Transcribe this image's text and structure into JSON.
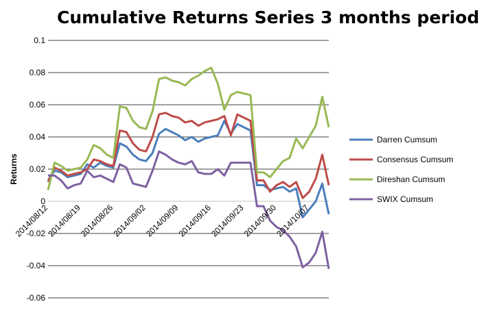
{
  "chart_data": {
    "type": "line",
    "title": "Cumulative Returns Series 3 months period",
    "xlabel": "",
    "ylabel": "Returns",
    "ylim": [
      -0.06,
      0.1
    ],
    "yticks": [
      -0.06,
      -0.04,
      -0.02,
      0,
      0.02,
      0.04,
      0.06,
      0.08,
      0.1
    ],
    "ytick_labels": [
      "-0.06",
      "-0.04",
      "-0.02",
      "0",
      "0.02",
      "0.04",
      "0.06",
      "0.08",
      "0.1"
    ],
    "grid": true,
    "legend_position": "right",
    "x_tick_labels": [
      "2014/08/12",
      "2014/08/19",
      "2014/08/26",
      "2014/09/02",
      "2014/09/09",
      "2014/09/16",
      "2014/09/23",
      "2014/09/30",
      "2014/10/07"
    ],
    "x_tick_index": [
      0,
      5,
      10,
      15,
      20,
      25,
      30,
      35,
      40
    ],
    "n_points": 44,
    "series": [
      {
        "name": "Darren Cumsum",
        "color": "#4a7ebb",
        "values": [
          0.013,
          0.019,
          0.018,
          0.015,
          0.016,
          0.017,
          0.023,
          0.021,
          0.024,
          0.022,
          0.021,
          0.036,
          0.034,
          0.029,
          0.026,
          0.025,
          0.03,
          0.042,
          0.045,
          0.043,
          0.041,
          0.038,
          0.04,
          0.037,
          0.039,
          0.04,
          0.041,
          0.05,
          0.042,
          0.048,
          0.046,
          0.044,
          0.01,
          0.01,
          0.007,
          0.008,
          0.009,
          0.006,
          0.008,
          -0.01,
          -0.005,
          0.0,
          0.011,
          -0.008
        ]
      },
      {
        "name": "Consensus Cumsum",
        "color": "#be4b48",
        "values": [
          0.012,
          0.021,
          0.019,
          0.016,
          0.017,
          0.018,
          0.02,
          0.026,
          0.025,
          0.023,
          0.022,
          0.044,
          0.043,
          0.036,
          0.032,
          0.031,
          0.04,
          0.054,
          0.055,
          0.053,
          0.052,
          0.049,
          0.05,
          0.047,
          0.049,
          0.05,
          0.051,
          0.053,
          0.041,
          0.054,
          0.052,
          0.05,
          0.013,
          0.013,
          0.006,
          0.01,
          0.012,
          0.009,
          0.012,
          0.002,
          0.006,
          0.014,
          0.029,
          0.01
        ]
      },
      {
        "name": "Direshan Cumsum",
        "color": "#98b954",
        "values": [
          0.007,
          0.024,
          0.022,
          0.019,
          0.02,
          0.021,
          0.026,
          0.035,
          0.033,
          0.029,
          0.027,
          0.059,
          0.058,
          0.05,
          0.046,
          0.045,
          0.056,
          0.076,
          0.077,
          0.075,
          0.074,
          0.072,
          0.076,
          0.078,
          0.081,
          0.083,
          0.073,
          0.057,
          0.066,
          0.068,
          0.067,
          0.066,
          0.018,
          0.018,
          0.015,
          0.02,
          0.025,
          0.027,
          0.039,
          0.033,
          0.04,
          0.047,
          0.065,
          0.046
        ]
      },
      {
        "name": "SWIX Cumsum",
        "color": "#7d60a0",
        "values": [
          0.016,
          0.016,
          0.013,
          0.008,
          0.01,
          0.011,
          0.019,
          0.015,
          0.016,
          0.014,
          0.012,
          0.023,
          0.021,
          0.011,
          0.01,
          0.009,
          0.019,
          0.031,
          0.029,
          0.026,
          0.024,
          0.023,
          0.025,
          0.018,
          0.017,
          0.017,
          0.02,
          0.016,
          0.024,
          0.024,
          0.024,
          0.024,
          -0.003,
          -0.003,
          -0.012,
          -0.016,
          -0.018,
          -0.022,
          -0.028,
          -0.041,
          -0.038,
          -0.032,
          -0.019,
          -0.042
        ]
      }
    ]
  }
}
